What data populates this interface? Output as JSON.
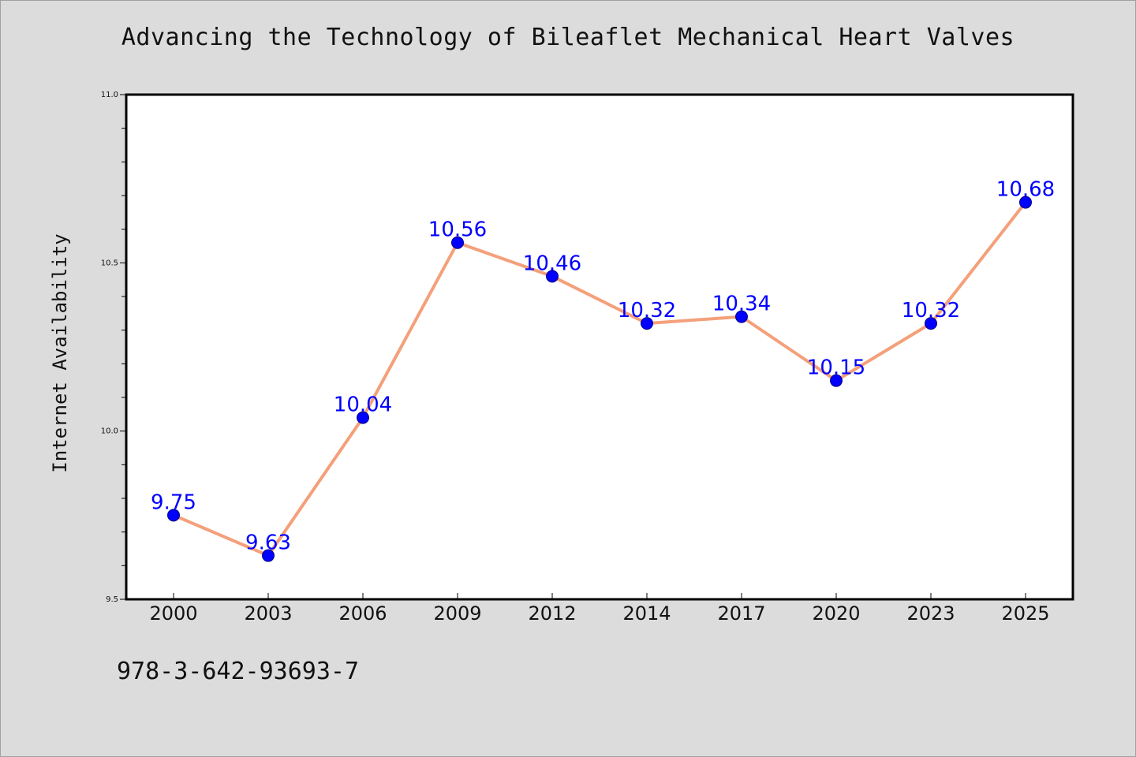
{
  "chart_data": {
    "type": "line",
    "title": "Advancing the Technology of Bileaflet Mechanical Heart Valves",
    "xlabel": "",
    "ylabel": "Internet Availability",
    "categories": [
      "2000",
      "2003",
      "2006",
      "2009",
      "2012",
      "2014",
      "2017",
      "2020",
      "2023",
      "2025"
    ],
    "series": [
      {
        "values": [
          9.75,
          9.63,
          10.04,
          10.56,
          10.46,
          10.32,
          10.34,
          10.15,
          10.32,
          10.68
        ],
        "data_labels": [
          "9.75",
          "9.63",
          "10.04",
          "10.56",
          "10.46",
          "10.32",
          "10.34",
          "10.15",
          "10.32",
          "10.68"
        ],
        "line_color": "#f4a07a",
        "marker_color": "#0000ff"
      }
    ],
    "ylim": [
      9.5,
      11.0
    ],
    "yticks": [
      "9.5",
      "10.0",
      "10.5",
      "11.0"
    ],
    "grid": false,
    "legend": "none"
  },
  "footer": {
    "code": "978-3-642-93693-7"
  },
  "colors": {
    "background": "#dcdcdc",
    "plot_area": "#ffffff",
    "line": "#f4a07a",
    "marker": "#0000ff",
    "data_label": "#0000ff"
  }
}
